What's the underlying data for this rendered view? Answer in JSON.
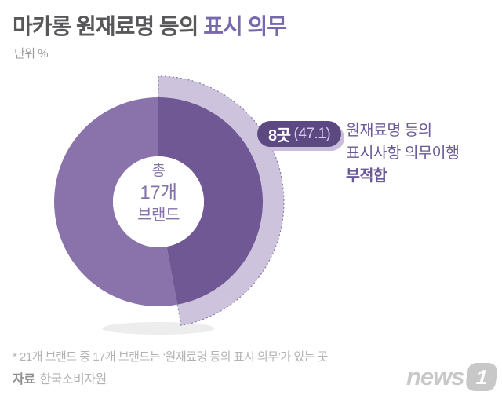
{
  "header": {
    "title_main": "마카롱 원재료명 등의 ",
    "title_accent": "표시 의무",
    "unit_label": "단위 %"
  },
  "chart_data": {
    "type": "pie",
    "subtype": "donut",
    "unit": "%",
    "title": "마카롱 원재료명 등의 표시 의무",
    "center_label": {
      "line1": "총",
      "line2": "17개",
      "line3": "브랜드"
    },
    "total_brands": 17,
    "segments": [
      {
        "label": "원재료명 등의 표시사항 의무이행 부적합",
        "count_label": "8곳",
        "count": 8,
        "value": 47.1,
        "highlighted": true,
        "color": "#6f5894",
        "halo_color": "#cdc3dc",
        "outline_color": "#8a7aa5"
      },
      {
        "label": "",
        "value": 52.9,
        "highlighted": false,
        "color": "#8973aa"
      }
    ],
    "callout": {
      "badge_count": "8곳",
      "badge_value": "(47.1)",
      "desc_line1": "원재료명 등의",
      "desc_line2": "표시사항 의무이행",
      "desc_line3": "부적합"
    },
    "legend_position": "right",
    "grid": false
  },
  "footer": {
    "footnote": "* 21개 브랜드 중 17개 브랜드는 ‘원재료명 등의 표시 의무’가 있는 곳",
    "source_label": "자료",
    "source_value": "한국소비자원",
    "logo_text": "news",
    "logo_number": "1"
  },
  "colors": {
    "title_gray": "#58585b",
    "title_purple": "#7868ad",
    "shadow": "#ededed",
    "background": "#ffffff"
  }
}
